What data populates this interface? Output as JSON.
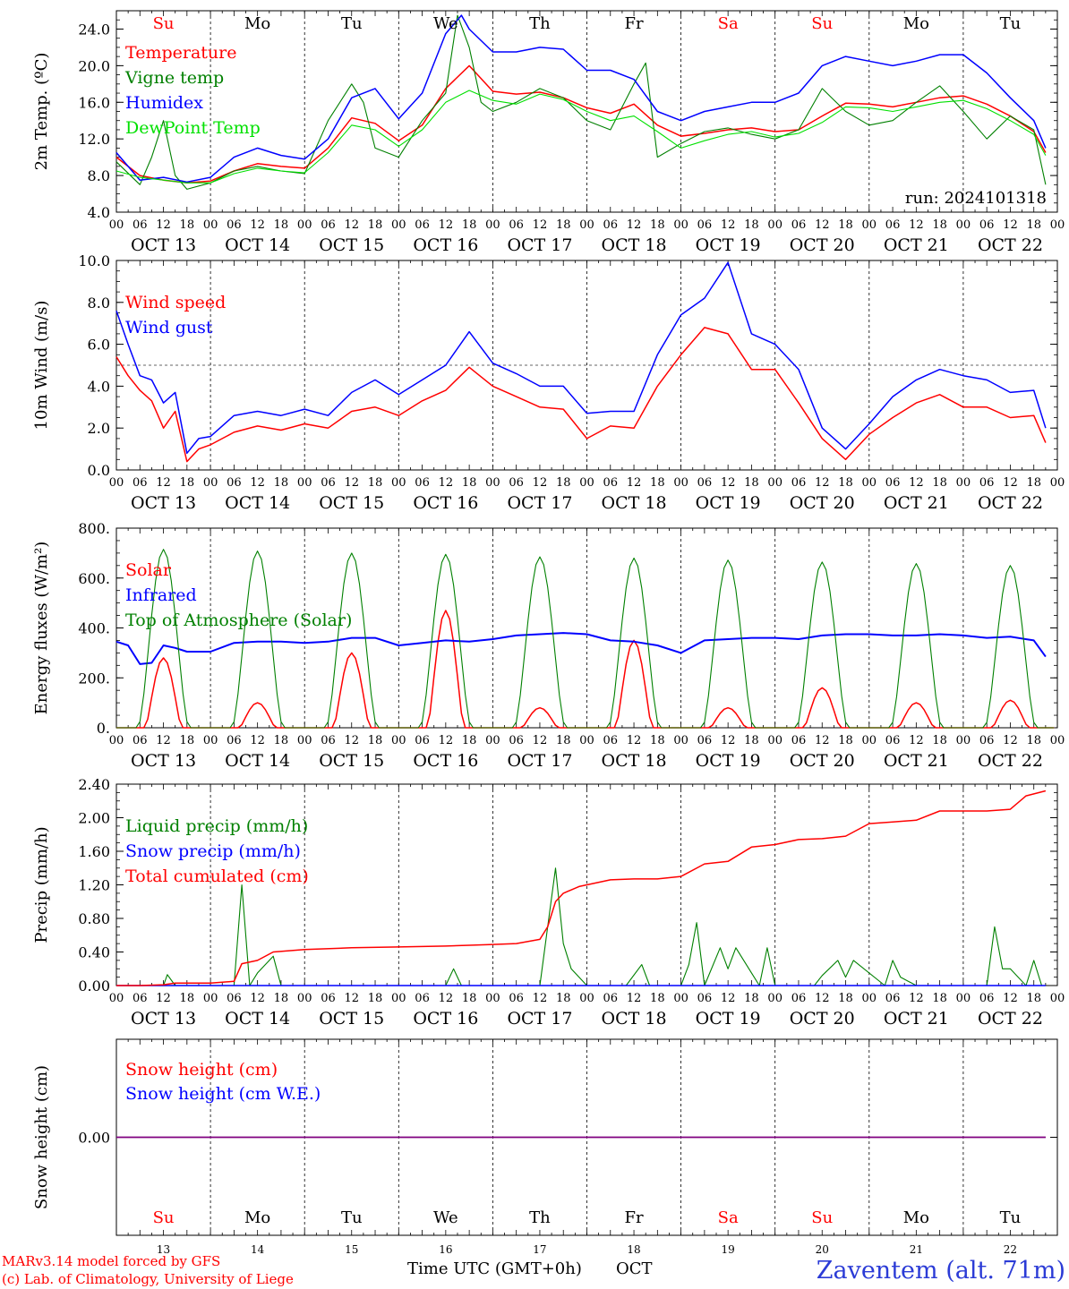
{
  "colors": {
    "red": "#ff0000",
    "green": "#008000",
    "blue": "#0000ff",
    "lightgreen": "#00e000",
    "snow_line": "#800080",
    "station": "#2b3bd6",
    "credit": "#ff0000",
    "weekend": "#ff0000",
    "weekday": "#000000"
  },
  "days": [
    {
      "dow": "Su",
      "date": "OCT 13",
      "num": "13",
      "weekend": true
    },
    {
      "dow": "Mo",
      "date": "OCT 14",
      "num": "14",
      "weekend": false
    },
    {
      "dow": "Tu",
      "date": "OCT 15",
      "num": "15",
      "weekend": false
    },
    {
      "dow": "We",
      "date": "OCT 16",
      "num": "16",
      "weekend": false
    },
    {
      "dow": "Th",
      "date": "OCT 17",
      "num": "17",
      "weekend": false
    },
    {
      "dow": "Fr",
      "date": "OCT 18",
      "num": "18",
      "weekend": false
    },
    {
      "dow": "Sa",
      "date": "OCT 19",
      "num": "19",
      "weekend": true
    },
    {
      "dow": "Su",
      "date": "OCT 20",
      "num": "20",
      "weekend": true
    },
    {
      "dow": "Mo",
      "date": "OCT 21",
      "num": "21",
      "weekend": false
    },
    {
      "dow": "Tu",
      "date": "OCT 22",
      "num": "22",
      "weekend": false
    }
  ],
  "hour_ticks": [
    "00",
    "06",
    "12",
    "18"
  ],
  "hour_end_tick": "00",
  "footer": {
    "credit_line1": "MARv3.14 model forced by GFS",
    "credit_line2": "(c) Lab. of Climatology, University of Liege",
    "xlabel": "Time UTC (GMT+0h)",
    "month": "OCT",
    "station": "Zaventem (alt. 71m)"
  },
  "chart_data": [
    {
      "type": "line",
      "ylabel": "2m Temp. (ºC)",
      "ytick_labels": [
        "4.0",
        "8.0",
        "12.0",
        "16.0",
        "20.0",
        "24.0"
      ],
      "ylim": [
        4,
        26
      ],
      "annotation": "run: 2024101318",
      "x_unit": "hours since OCT 13 00 UTC",
      "series": [
        {
          "name": "Temperature",
          "color": "red",
          "x": [
            0,
            6,
            12,
            18,
            24,
            30,
            36,
            42,
            48,
            54,
            60,
            66,
            72,
            78,
            84,
            90,
            96,
            102,
            108,
            114,
            120,
            126,
            132,
            138,
            144,
            150,
            156,
            162,
            168,
            174,
            180,
            186,
            192,
            198,
            204,
            210,
            216,
            222,
            228,
            234,
            237
          ],
          "y": [
            10,
            8,
            7.5,
            7.2,
            7.4,
            8.5,
            9.3,
            9.0,
            8.8,
            11,
            14.3,
            13.7,
            11.8,
            13.5,
            17.5,
            20,
            17.2,
            16.9,
            17.1,
            16.5,
            15.4,
            14.8,
            15.8,
            13.5,
            12.3,
            12.6,
            13,
            13.2,
            12.8,
            13,
            14.5,
            15.9,
            15.8,
            15.5,
            16,
            16.5,
            16.7,
            15.8,
            14.5,
            12.8,
            10.5
          ]
        },
        {
          "name": "Vigne temp",
          "color": "green",
          "x": [
            0,
            6,
            9,
            12,
            15,
            18,
            24,
            30,
            36,
            42,
            48,
            54,
            60,
            63,
            66,
            72,
            78,
            84,
            87,
            90,
            93,
            96,
            102,
            108,
            114,
            120,
            126,
            132,
            135,
            138,
            144,
            150,
            156,
            162,
            168,
            174,
            180,
            186,
            192,
            198,
            204,
            210,
            216,
            222,
            228,
            234,
            237
          ],
          "y": [
            9.5,
            7,
            10,
            14,
            8,
            6.5,
            7.2,
            8.5,
            9,
            8.5,
            8.2,
            14,
            18,
            16,
            11,
            10,
            14,
            17,
            25.5,
            22,
            16,
            15,
            16,
            17.5,
            16.5,
            14,
            13,
            18,
            20.3,
            10,
            11.5,
            12.8,
            13.2,
            12.5,
            12,
            13,
            17.5,
            15,
            13.5,
            14,
            16,
            17.8,
            15,
            12,
            14.5,
            13,
            7
          ]
        },
        {
          "name": "Humidex",
          "color": "blue",
          "x": [
            0,
            6,
            12,
            18,
            24,
            30,
            36,
            42,
            48,
            54,
            60,
            66,
            72,
            78,
            84,
            88,
            90,
            96,
            102,
            108,
            114,
            120,
            126,
            132,
            138,
            144,
            150,
            156,
            162,
            168,
            174,
            180,
            186,
            192,
            198,
            204,
            210,
            216,
            222,
            228,
            234,
            237
          ],
          "y": [
            10.5,
            7.5,
            7.8,
            7.3,
            7.8,
            10,
            11,
            10.2,
            9.8,
            12,
            16.5,
            17.5,
            14.2,
            17,
            23.5,
            25.5,
            24,
            21.5,
            21.5,
            22,
            21.8,
            19.5,
            19.5,
            18.5,
            15,
            14,
            15,
            15.5,
            16,
            16,
            17,
            20,
            21,
            20.5,
            20,
            20.5,
            21.2,
            21.2,
            19.2,
            16.5,
            14,
            11
          ]
        },
        {
          "name": "DewPoint Temp",
          "color": "lightgreen",
          "x": [
            0,
            6,
            12,
            18,
            24,
            30,
            36,
            42,
            48,
            54,
            60,
            66,
            72,
            78,
            84,
            90,
            96,
            102,
            108,
            114,
            120,
            126,
            132,
            138,
            144,
            150,
            156,
            162,
            168,
            174,
            180,
            186,
            192,
            198,
            204,
            210,
            216,
            222,
            228,
            234,
            237
          ],
          "y": [
            8.5,
            7.8,
            7.5,
            7.2,
            7.2,
            8.2,
            8.8,
            8.5,
            8.3,
            10.5,
            13.5,
            13,
            11.2,
            13,
            16,
            17.3,
            16.2,
            15.8,
            16.9,
            16.3,
            15,
            14,
            14.5,
            12.8,
            11,
            11.8,
            12.5,
            12.8,
            12.2,
            12.6,
            13.8,
            15.5,
            15.4,
            15,
            15.5,
            16,
            16.2,
            15.3,
            14,
            12.5,
            10.2
          ]
        }
      ],
      "x_range": [
        0,
        237
      ],
      "legend_position": "top-left"
    },
    {
      "type": "line",
      "ylabel": "10m Wind (m/s)",
      "ytick_labels": [
        "0.0",
        "2.0",
        "4.0",
        "6.0",
        "8.0",
        "10.0"
      ],
      "ylim": [
        0,
        10
      ],
      "reference_line": 5,
      "series": [
        {
          "name": "Wind speed",
          "color": "red",
          "x": [
            0,
            3,
            6,
            9,
            12,
            15,
            18,
            21,
            24,
            30,
            36,
            42,
            48,
            54,
            60,
            66,
            72,
            78,
            84,
            90,
            96,
            102,
            108,
            114,
            120,
            126,
            132,
            138,
            144,
            150,
            156,
            162,
            168,
            174,
            180,
            186,
            192,
            198,
            204,
            210,
            216,
            222,
            228,
            234,
            237
          ],
          "y": [
            5.4,
            4.5,
            3.8,
            3.3,
            2,
            2.8,
            0.4,
            1,
            1.2,
            1.8,
            2.1,
            1.9,
            2.2,
            2,
            2.8,
            3,
            2.6,
            3.3,
            3.8,
            4.9,
            4,
            3.5,
            3,
            2.9,
            1.5,
            2.1,
            2,
            4,
            5.5,
            6.8,
            6.5,
            4.8,
            4.8,
            3.2,
            1.5,
            0.5,
            1.7,
            2.5,
            3.2,
            3.6,
            3,
            3,
            2.5,
            2.6,
            1.3
          ]
        },
        {
          "name": "Wind gust",
          "color": "blue",
          "x": [
            0,
            3,
            6,
            9,
            12,
            15,
            18,
            21,
            24,
            30,
            36,
            42,
            48,
            54,
            60,
            66,
            72,
            78,
            84,
            90,
            96,
            102,
            108,
            114,
            120,
            126,
            132,
            138,
            144,
            150,
            156,
            162,
            168,
            174,
            180,
            186,
            192,
            198,
            204,
            210,
            216,
            222,
            228,
            234,
            237
          ],
          "y": [
            7.6,
            6,
            4.5,
            4.3,
            3.2,
            3.7,
            0.8,
            1.5,
            1.6,
            2.6,
            2.8,
            2.6,
            2.9,
            2.6,
            3.7,
            4.3,
            3.6,
            4.3,
            5,
            6.6,
            5.1,
            4.6,
            4,
            4,
            2.7,
            2.8,
            2.8,
            5.5,
            7.4,
            8.2,
            9.9,
            6.5,
            6,
            4.8,
            2,
            1,
            2.2,
            3.5,
            4.3,
            4.8,
            4.5,
            4.3,
            3.7,
            3.8,
            2
          ]
        }
      ],
      "x_range": [
        0,
        237
      ],
      "legend_position": "top-left"
    },
    {
      "type": "line",
      "ylabel": "Energy fluxes (W/m²)",
      "ytick_labels": [
        "0.",
        "200.",
        "400.",
        "600.",
        "800."
      ],
      "ylim": [
        0,
        800
      ],
      "series": [
        {
          "name": "Solar",
          "color": "red",
          "day_peaks": [
            280,
            100,
            300,
            470,
            80,
            350,
            80,
            160,
            100,
            110
          ],
          "peak_hour": 12
        },
        {
          "name": "Infrared",
          "color": "blue",
          "x": [
            0,
            3,
            6,
            9,
            12,
            15,
            18,
            24,
            30,
            36,
            42,
            48,
            54,
            60,
            66,
            72,
            78,
            84,
            90,
            96,
            102,
            108,
            114,
            120,
            126,
            132,
            138,
            144,
            150,
            156,
            162,
            168,
            174,
            180,
            186,
            192,
            198,
            204,
            210,
            216,
            222,
            228,
            234,
            237
          ],
          "y": [
            345,
            330,
            255,
            260,
            330,
            320,
            305,
            305,
            340,
            345,
            345,
            340,
            345,
            360,
            360,
            330,
            340,
            350,
            345,
            355,
            370,
            375,
            380,
            375,
            350,
            345,
            330,
            300,
            350,
            355,
            360,
            360,
            355,
            370,
            375,
            375,
            370,
            370,
            375,
            370,
            360,
            365,
            350,
            285
          ]
        },
        {
          "name": "Top of Atmosphere (Solar)",
          "color": "green",
          "day_peaks": [
            715,
            708,
            700,
            695,
            685,
            680,
            672,
            664,
            658,
            650
          ],
          "peak_hour": 12
        }
      ],
      "x_range": [
        0,
        237
      ],
      "legend_position": "top-left"
    },
    {
      "type": "line",
      "ylabel": "Precip (mm/h)",
      "ytick_labels": [
        "0.00",
        "0.40",
        "0.80",
        "1.20",
        "1.60",
        "2.00",
        "2.40"
      ],
      "ylim": [
        0,
        2.4
      ],
      "series": [
        {
          "name": "Liquid precip (mm/h)",
          "color": "green",
          "x": [
            0,
            12,
            13,
            15,
            30,
            32,
            34,
            36,
            40,
            42,
            44,
            48,
            60,
            84,
            86,
            88,
            108,
            110,
            112,
            114,
            116,
            120,
            130,
            134,
            136,
            144,
            146,
            148,
            150,
            154,
            156,
            158,
            162,
            164,
            166,
            168,
            170,
            178,
            180,
            184,
            186,
            188,
            196,
            198,
            200,
            204,
            206,
            208,
            222,
            224,
            226,
            228,
            232,
            234,
            236,
            237
          ],
          "y": [
            0,
            0,
            0.13,
            0,
            0,
            1.2,
            0,
            0.15,
            0.35,
            0,
            0,
            0,
            0,
            0,
            0.2,
            0,
            0,
            0.7,
            1.4,
            0.5,
            0.2,
            0,
            0,
            0.25,
            0,
            0,
            0.25,
            0.75,
            0,
            0.45,
            0.2,
            0.45,
            0.15,
            0,
            0.45,
            0,
            0,
            0,
            0.12,
            0.3,
            0.1,
            0.3,
            0,
            0.3,
            0.1,
            0,
            0,
            0,
            0,
            0.7,
            0.2,
            0.2,
            0,
            0.3,
            0,
            0
          ]
        },
        {
          "name": "Snow precip (mm/h)",
          "color": "blue",
          "x": [
            0,
            237
          ],
          "y": [
            0,
            0
          ]
        },
        {
          "name": "Total cumulated (cm)",
          "color": "red",
          "x": [
            0,
            6,
            12,
            15,
            24,
            30,
            32,
            36,
            40,
            48,
            60,
            72,
            84,
            90,
            96,
            102,
            108,
            110,
            112,
            114,
            118,
            120,
            126,
            132,
            138,
            144,
            150,
            156,
            162,
            168,
            174,
            180,
            186,
            192,
            198,
            204,
            210,
            216,
            222,
            228,
            232,
            237
          ],
          "y": [
            0,
            0,
            0.01,
            0.03,
            0.03,
            0.05,
            0.26,
            0.3,
            0.4,
            0.43,
            0.45,
            0.46,
            0.47,
            0.48,
            0.49,
            0.5,
            0.55,
            0.7,
            1.0,
            1.1,
            1.18,
            1.2,
            1.26,
            1.27,
            1.27,
            1.3,
            1.45,
            1.48,
            1.65,
            1.68,
            1.74,
            1.75,
            1.78,
            1.93,
            1.95,
            1.97,
            2.08,
            2.08,
            2.08,
            2.1,
            2.26,
            2.32
          ]
        }
      ],
      "x_range": [
        0,
        237
      ],
      "legend_position": "top-left"
    },
    {
      "type": "line",
      "ylabel": "Snow height (cm)",
      "ytick_labels": [
        "0.00"
      ],
      "ylim": [
        -0.1,
        0.1
      ],
      "series": [
        {
          "name": "Snow height (cm)",
          "color": "red",
          "x": [
            0,
            237
          ],
          "y": [
            0,
            0
          ]
        },
        {
          "name": "Snow height (cm W.E.)",
          "color": "blue",
          "x": [
            0,
            237
          ],
          "y": [
            0,
            0
          ]
        }
      ],
      "x_range": [
        0,
        237
      ],
      "legend_position": "top-left"
    }
  ]
}
